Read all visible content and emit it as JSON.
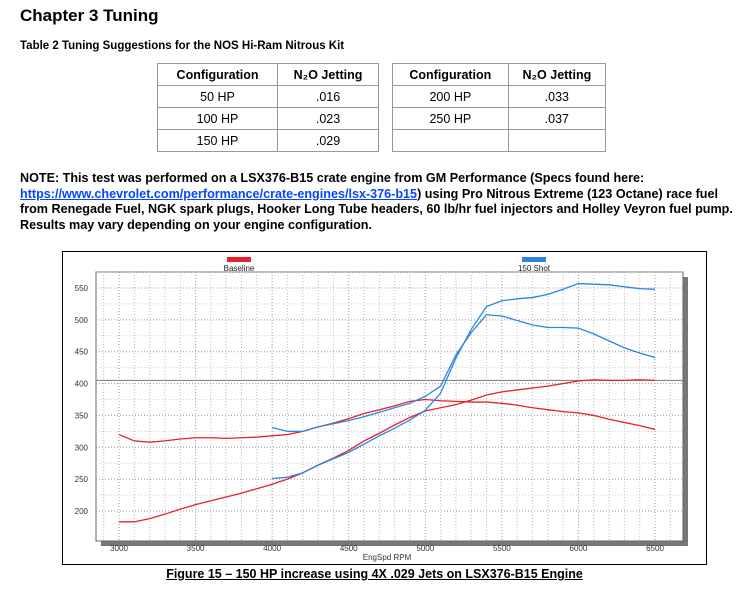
{
  "heading": "Chapter 3 Tuning",
  "table_caption": "Table 2 Tuning Suggestions for the NOS Hi-Ram Nitrous Kit",
  "table_left": {
    "headers": [
      "Configuration",
      "N₂O Jetting"
    ],
    "rows": [
      [
        "50 HP",
        ".016"
      ],
      [
        "100 HP",
        ".023"
      ],
      [
        "150 HP",
        ".029"
      ]
    ]
  },
  "table_right": {
    "headers": [
      "Configuration",
      "N₂O Jetting"
    ],
    "rows": [
      [
        "200 HP",
        ".033"
      ],
      [
        "250 HP",
        ".037"
      ],
      [
        "",
        ""
      ]
    ]
  },
  "note": {
    "before": "NOTE: This test was performed on a LSX376-B15 crate engine from GM Performance (Specs found here: ",
    "link": "https://www.chevrolet.com/performance/crate-engines/lsx-376-b15",
    "after": ") using Pro Nitrous Extreme (123 Octane) race fuel from Renegade Fuel, NGK spark plugs, Hooker Long Tube headers, 60 lb/hr fuel injectors and Holley Veyron fuel pump.  Results may vary depending on your engine configuration."
  },
  "figure_caption": "Figure 15 – 150 HP increase using 4X .029 Jets on LSX376-B15 Engine",
  "chart_data": {
    "type": "line",
    "xlabel": "EngSpd RPM",
    "ylabel": "",
    "xlim": [
      2850,
      6650
    ],
    "ylim": [
      175,
      575
    ],
    "xticks": [
      3000,
      3500,
      4000,
      4500,
      5000,
      5500,
      6000,
      6500
    ],
    "yticks": [
      200,
      250,
      300,
      350,
      400,
      450,
      500,
      550
    ],
    "grid": true,
    "legend": "top",
    "series": [
      {
        "name": "Baseline",
        "color": "#e8202a",
        "curve": "hp",
        "x": [
          3000,
          3100,
          3200,
          3300,
          3400,
          3500,
          3600,
          3700,
          3800,
          3900,
          4000,
          4100,
          4200,
          4300,
          4400,
          4500,
          4600,
          4700,
          4800,
          4900,
          5000,
          5100,
          5200,
          5300,
          5400,
          5500,
          5600,
          5700,
          5800,
          5900,
          6000,
          6100,
          6200,
          6300,
          6400,
          6500
        ],
        "y": [
          183,
          183,
          188,
          195,
          203,
          210,
          216,
          222,
          228,
          235,
          242,
          250,
          260,
          272,
          283,
          295,
          310,
          322,
          335,
          347,
          357,
          362,
          367,
          374,
          382,
          387,
          390,
          393,
          396,
          400,
          404,
          406,
          405,
          405,
          406,
          405
        ]
      },
      {
        "name": "Baseline",
        "color": "#e8202a",
        "curve": "torque",
        "x": [
          3000,
          3100,
          3200,
          3300,
          3400,
          3500,
          3600,
          3700,
          3800,
          3900,
          4000,
          4100,
          4200,
          4300,
          4400,
          4500,
          4600,
          4700,
          4800,
          4900,
          5000,
          5100,
          5200,
          5300,
          5400,
          5500,
          5600,
          5700,
          5800,
          5900,
          6000,
          6100,
          6200,
          6300,
          6400,
          6500
        ],
        "y": [
          320,
          310,
          308,
          310,
          313,
          315,
          315,
          314,
          315,
          316,
          318,
          320,
          325,
          332,
          338,
          345,
          353,
          359,
          365,
          372,
          375,
          373,
          372,
          371,
          371,
          369,
          366,
          362,
          359,
          356,
          354,
          350,
          344,
          339,
          334,
          328
        ]
      },
      {
        "name": "150 Shot",
        "color": "#2a86e0",
        "curve": "hp",
        "x": [
          4000,
          4100,
          4200,
          4300,
          4400,
          4500,
          4600,
          4700,
          4800,
          4900,
          5000,
          5100,
          5200,
          5300,
          5400,
          5500,
          5600,
          5700,
          5800,
          5900,
          6000,
          6100,
          6200,
          6300,
          6400,
          6500
        ],
        "y": [
          251,
          253,
          260,
          272,
          282,
          292,
          305,
          318,
          330,
          343,
          358,
          385,
          440,
          485,
          521,
          530,
          533,
          535,
          540,
          548,
          557,
          556,
          555,
          552,
          549,
          548
        ]
      },
      {
        "name": "150 Shot",
        "color": "#2a86e0",
        "curve": "torque",
        "x": [
          4000,
          4100,
          4200,
          4300,
          4400,
          4500,
          4600,
          4700,
          4800,
          4900,
          5000,
          5100,
          5200,
          5300,
          5400,
          5500,
          5600,
          5700,
          5800,
          5900,
          6000,
          6100,
          6200,
          6300,
          6400,
          6500
        ],
        "y": [
          331,
          325,
          325,
          332,
          337,
          342,
          348,
          355,
          362,
          369,
          380,
          396,
          445,
          480,
          508,
          506,
          499,
          492,
          488,
          488,
          487,
          478,
          467,
          456,
          448,
          441
        ]
      }
    ],
    "reference_line": 405
  }
}
